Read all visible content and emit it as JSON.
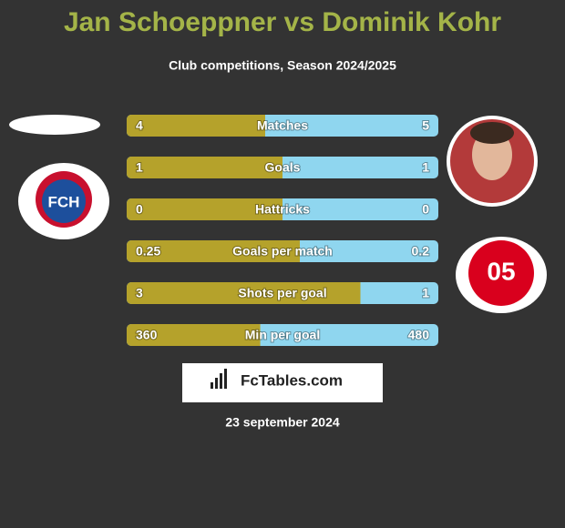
{
  "title": "Jan Schoeppner vs Dominik Kohr",
  "subtitle": "Club competitions, Season 2024/2025",
  "rows": [
    {
      "label": "Matches",
      "left": 4,
      "right": 5
    },
    {
      "label": "Goals",
      "left": 1,
      "right": 1
    },
    {
      "label": "Hattricks",
      "left": 0,
      "right": 0
    },
    {
      "label": "Goals per match",
      "left": 0.25,
      "right": 0.2
    },
    {
      "label": "Shots per goal",
      "left": 3,
      "right": 1
    },
    {
      "label": "Min per goal",
      "left": 360,
      "right": 480
    }
  ],
  "colors": {
    "left": "#b5a22b",
    "right": "#8fd6ef"
  },
  "logos": {
    "left": "FCH",
    "right": "05"
  },
  "brand": "FcTables.com",
  "date": "23 september 2024"
}
